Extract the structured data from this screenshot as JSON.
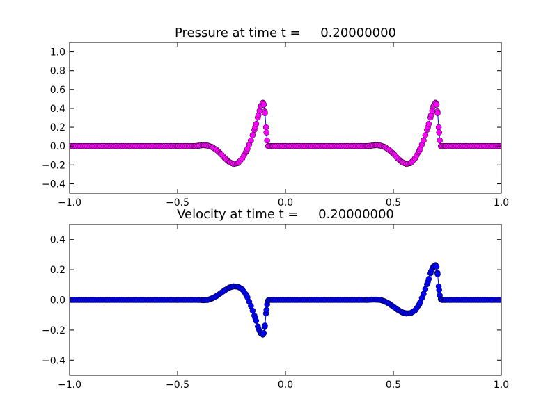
{
  "colors": {
    "pressure_marker": "#ff00ff",
    "velocity_marker": "#0000ff",
    "line": "#0000ff",
    "edge": "#000000"
  },
  "chart_data": [
    {
      "type": "line",
      "title": "Pressure at time t =     0.20000000",
      "xlabel": "",
      "ylabel": "",
      "xlim": [
        -1.0,
        1.0
      ],
      "ylim": [
        -0.5,
        1.1
      ],
      "xticks": [
        "−1.0",
        "−0.5",
        "0.0",
        "0.5",
        "1.0"
      ],
      "yticks": [
        "−0.4",
        "−0.2",
        "0.0",
        "0.2",
        "0.4",
        "0.6",
        "0.8",
        "1.0"
      ],
      "grid": false,
      "series": [
        {
          "style": "line with circle markers",
          "color": "#ff00ff",
          "points": [
            [
              -0.5,
              0.0
            ],
            [
              -0.42,
              0.0
            ],
            [
              -0.4,
              0.005
            ],
            [
              -0.38,
              0.01
            ],
            [
              -0.36,
              0.005
            ],
            [
              -0.34,
              -0.01
            ],
            [
              -0.32,
              -0.04
            ],
            [
              -0.3,
              -0.08
            ],
            [
              -0.28,
              -0.13
            ],
            [
              -0.26,
              -0.17
            ],
            [
              -0.24,
              -0.19
            ],
            [
              -0.22,
              -0.18
            ],
            [
              -0.2,
              -0.13
            ],
            [
              -0.18,
              -0.05
            ],
            [
              -0.16,
              0.06
            ],
            [
              -0.14,
              0.2
            ],
            [
              -0.125,
              0.33
            ],
            [
              -0.115,
              0.42
            ],
            [
              -0.105,
              0.46
            ],
            [
              -0.1,
              0.44
            ],
            [
              -0.095,
              0.35
            ],
            [
              -0.09,
              0.2
            ],
            [
              -0.085,
              0.06
            ],
            [
              -0.08,
              0.0
            ],
            [
              -0.06,
              0.0
            ],
            [
              0.38,
              0.0
            ],
            [
              0.4,
              0.005
            ],
            [
              0.42,
              0.01
            ],
            [
              0.44,
              0.005
            ],
            [
              0.46,
              -0.01
            ],
            [
              0.48,
              -0.04
            ],
            [
              0.5,
              -0.08
            ],
            [
              0.52,
              -0.13
            ],
            [
              0.54,
              -0.17
            ],
            [
              0.56,
              -0.19
            ],
            [
              0.58,
              -0.18
            ],
            [
              0.6,
              -0.13
            ],
            [
              0.62,
              -0.05
            ],
            [
              0.64,
              0.06
            ],
            [
              0.66,
              0.2
            ],
            [
              0.675,
              0.33
            ],
            [
              0.685,
              0.42
            ],
            [
              0.695,
              0.46
            ],
            [
              0.7,
              0.44
            ],
            [
              0.705,
              0.35
            ],
            [
              0.71,
              0.2
            ],
            [
              0.715,
              0.06
            ],
            [
              0.72,
              0.0
            ],
            [
              0.74,
              0.0
            ]
          ]
        }
      ]
    },
    {
      "type": "line",
      "title": "Velocity at time t =     0.20000000",
      "xlabel": "",
      "ylabel": "",
      "xlim": [
        -1.0,
        1.0
      ],
      "ylim": [
        -0.5,
        0.5
      ],
      "xticks": [
        "−1.0",
        "−0.5",
        "0.0",
        "0.5",
        "1.0"
      ],
      "yticks": [
        "−0.4",
        "−0.2",
        "0.0",
        "0.2",
        "0.4"
      ],
      "grid": false,
      "series": [
        {
          "style": "line with circle markers",
          "color": "#0000ff",
          "points": [
            [
              -0.5,
              0.0
            ],
            [
              -0.4,
              0.0
            ],
            [
              -0.38,
              -0.002
            ],
            [
              -0.36,
              0.0
            ],
            [
              -0.34,
              0.01
            ],
            [
              -0.32,
              0.025
            ],
            [
              -0.3,
              0.045
            ],
            [
              -0.28,
              0.065
            ],
            [
              -0.26,
              0.082
            ],
            [
              -0.24,
              0.09
            ],
            [
              -0.22,
              0.088
            ],
            [
              -0.2,
              0.07
            ],
            [
              -0.18,
              0.03
            ],
            [
              -0.16,
              -0.04
            ],
            [
              -0.14,
              -0.12
            ],
            [
              -0.125,
              -0.19
            ],
            [
              -0.115,
              -0.22
            ],
            [
              -0.105,
              -0.23
            ],
            [
              -0.1,
              -0.22
            ],
            [
              -0.095,
              -0.17
            ],
            [
              -0.09,
              -0.09
            ],
            [
              -0.085,
              -0.03
            ],
            [
              -0.08,
              -0.005
            ],
            [
              -0.075,
              0.0
            ],
            [
              -0.06,
              0.0
            ],
            [
              0.38,
              0.0
            ],
            [
              0.4,
              0.002
            ],
            [
              0.42,
              0.002
            ],
            [
              0.44,
              0.0
            ],
            [
              0.46,
              -0.01
            ],
            [
              0.48,
              -0.025
            ],
            [
              0.5,
              -0.045
            ],
            [
              0.52,
              -0.065
            ],
            [
              0.54,
              -0.082
            ],
            [
              0.56,
              -0.09
            ],
            [
              0.58,
              -0.088
            ],
            [
              0.6,
              -0.07
            ],
            [
              0.62,
              -0.03
            ],
            [
              0.64,
              0.04
            ],
            [
              0.66,
              0.12
            ],
            [
              0.675,
              0.19
            ],
            [
              0.685,
              0.22
            ],
            [
              0.695,
              0.23
            ],
            [
              0.7,
              0.22
            ],
            [
              0.705,
              0.17
            ],
            [
              0.71,
              0.09
            ],
            [
              0.715,
              0.03
            ],
            [
              0.72,
              0.005
            ],
            [
              0.725,
              0.0
            ],
            [
              0.74,
              0.0
            ]
          ]
        }
      ]
    }
  ]
}
